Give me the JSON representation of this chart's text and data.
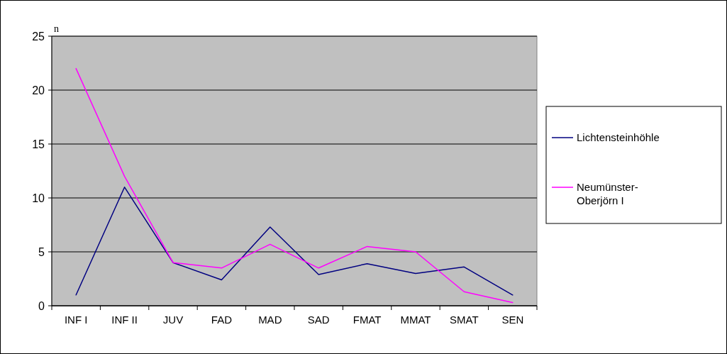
{
  "chart_data": {
    "type": "line",
    "ylabel": "n",
    "categories": [
      "INF I",
      "INF II",
      "JUV",
      "FAD",
      "MAD",
      "SAD",
      "FMAT",
      "MMAT",
      "SMAT",
      "SEN"
    ],
    "series": [
      {
        "name": "Lichtensteinhöhle",
        "color": "#000080",
        "values": [
          1,
          11,
          4,
          2.4,
          7.3,
          2.9,
          3.9,
          3,
          3.6,
          1
        ]
      },
      {
        "name": "Neumünster-Oberjörn I",
        "color": "#ff00ff",
        "values": [
          22,
          12,
          4,
          3.5,
          5.7,
          3.5,
          5.5,
          5,
          1.3,
          0.3
        ]
      }
    ],
    "ylim": [
      0,
      25
    ],
    "yticks": [
      0,
      5,
      10,
      15,
      20,
      25
    ],
    "grid": "y",
    "legend": "right",
    "marker": "none",
    "line_style": "solid"
  }
}
